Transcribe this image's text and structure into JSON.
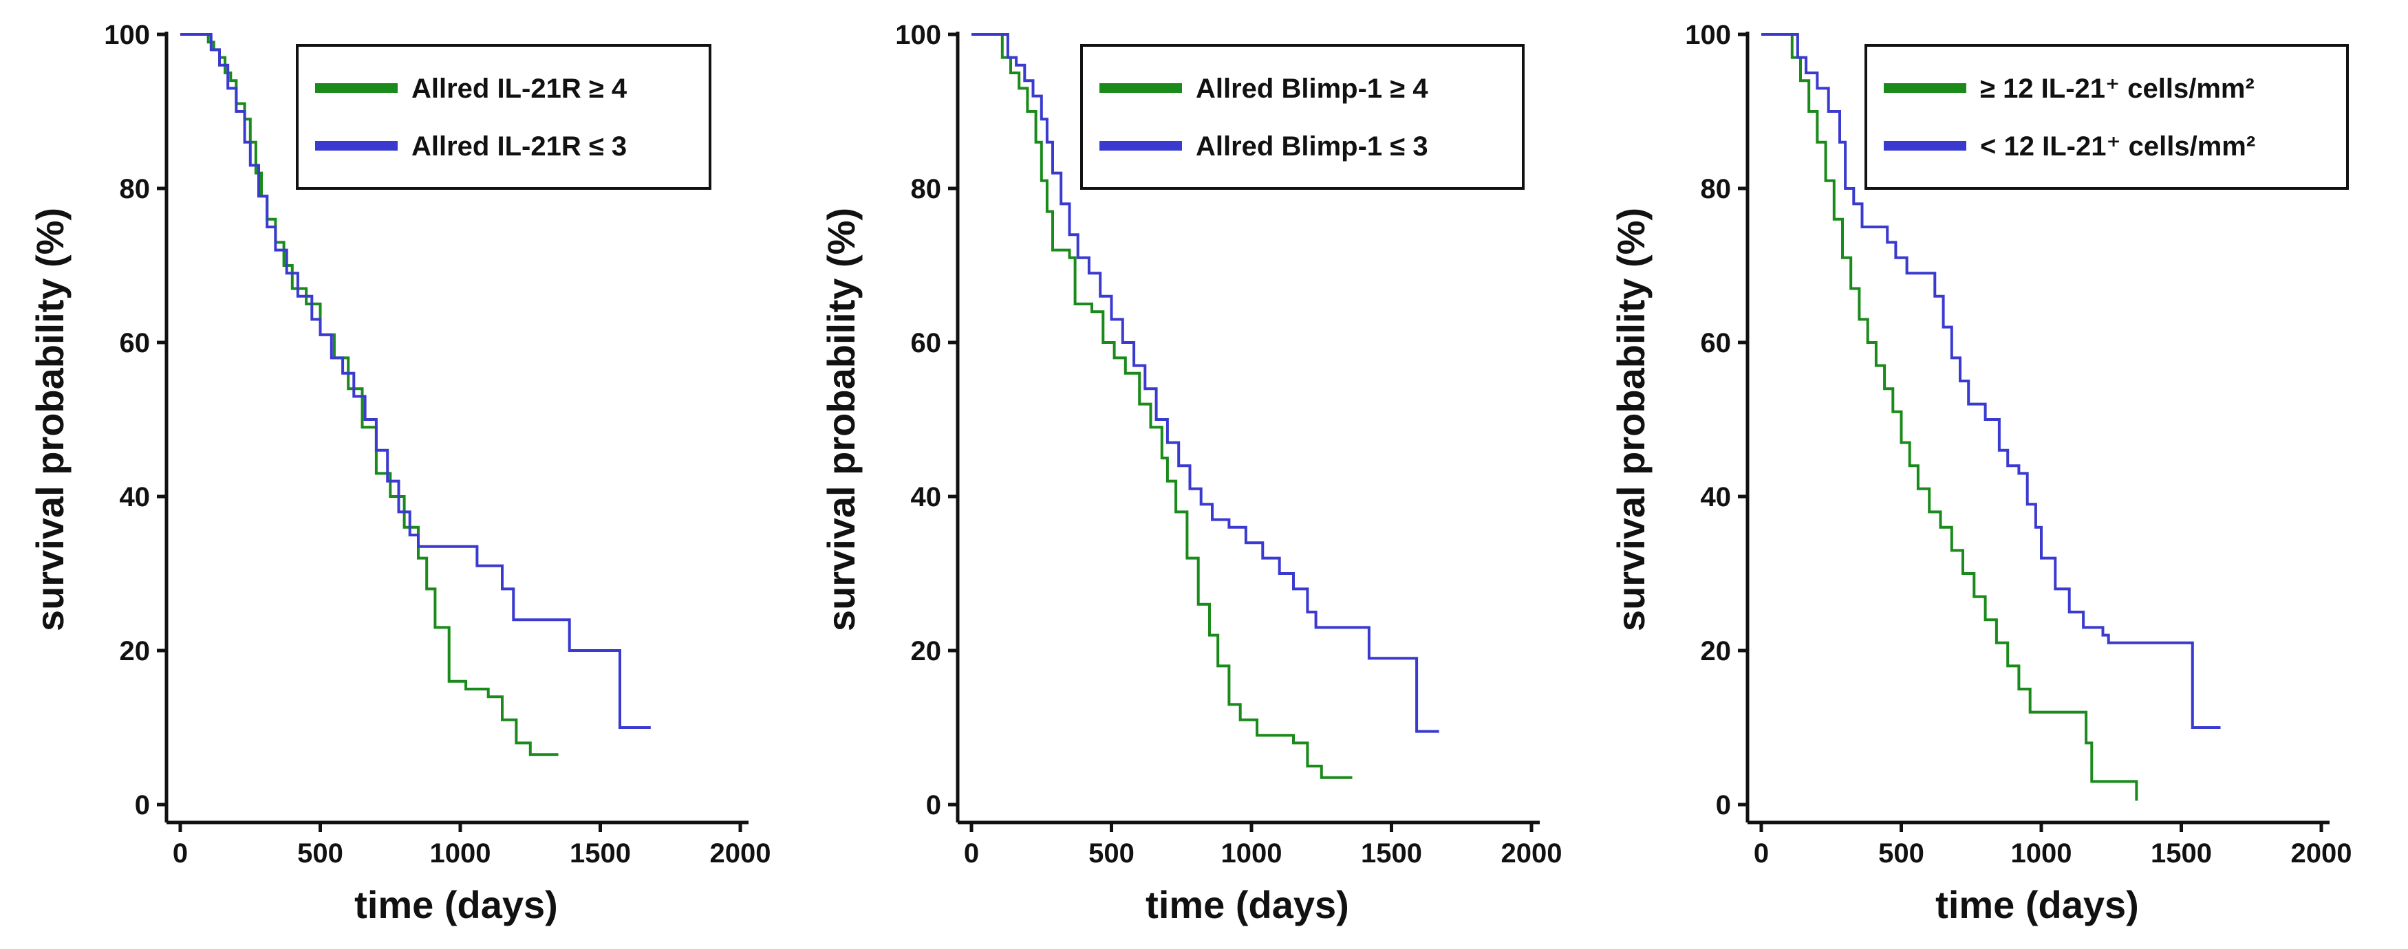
{
  "chart_data": [
    {
      "type": "line",
      "subtype": "kaplan-meier",
      "title": "",
      "xlabel": "time (days)",
      "ylabel": "survival probability (%)",
      "xlim": [
        0,
        2000
      ],
      "ylim": [
        0,
        100
      ],
      "xticks": [
        "0",
        "500",
        "1000",
        "1500",
        "2000"
      ],
      "yticks": [
        "0",
        "20",
        "40",
        "60",
        "80",
        "100"
      ],
      "legend_position": "top-right",
      "series": [
        {
          "name": "Allred IL-21R ≥ 4",
          "color": "#1a8a1a",
          "points": [
            [
              0,
              100
            ],
            [
              80,
              100
            ],
            [
              100,
              99
            ],
            [
              120,
              98
            ],
            [
              140,
              97
            ],
            [
              160,
              95
            ],
            [
              180,
              94
            ],
            [
              200,
              91
            ],
            [
              230,
              89
            ],
            [
              250,
              86
            ],
            [
              270,
              82
            ],
            [
              290,
              79
            ],
            [
              310,
              76
            ],
            [
              340,
              73
            ],
            [
              370,
              70
            ],
            [
              400,
              67
            ],
            [
              450,
              65
            ],
            [
              500,
              61
            ],
            [
              550,
              58
            ],
            [
              600,
              54
            ],
            [
              650,
              49
            ],
            [
              700,
              43
            ],
            [
              750,
              40
            ],
            [
              800,
              36
            ],
            [
              850,
              32
            ],
            [
              880,
              28
            ],
            [
              910,
              23
            ],
            [
              960,
              16
            ],
            [
              1020,
              15
            ],
            [
              1100,
              14
            ],
            [
              1150,
              11
            ],
            [
              1200,
              8
            ],
            [
              1250,
              6.5
            ],
            [
              1350,
              6.5
            ]
          ]
        },
        {
          "name": "Allred IL-21R ≤ 3",
          "color": "#3a3ad0",
          "points": [
            [
              0,
              100
            ],
            [
              90,
              100
            ],
            [
              110,
              98
            ],
            [
              140,
              96
            ],
            [
              170,
              93
            ],
            [
              200,
              90
            ],
            [
              230,
              86
            ],
            [
              250,
              83
            ],
            [
              280,
              79
            ],
            [
              310,
              75
            ],
            [
              340,
              72
            ],
            [
              380,
              69
            ],
            [
              420,
              66
            ],
            [
              470,
              63
            ],
            [
              500,
              61
            ],
            [
              540,
              58
            ],
            [
              580,
              56
            ],
            [
              620,
              53
            ],
            [
              660,
              50
            ],
            [
              700,
              46
            ],
            [
              740,
              42
            ],
            [
              780,
              38
            ],
            [
              820,
              35
            ],
            [
              850,
              33.5
            ],
            [
              1040,
              33.5
            ],
            [
              1060,
              31
            ],
            [
              1150,
              28
            ],
            [
              1190,
              24
            ],
            [
              1380,
              24
            ],
            [
              1390,
              20
            ],
            [
              1560,
              20
            ],
            [
              1570,
              10
            ],
            [
              1680,
              10
            ]
          ]
        }
      ]
    },
    {
      "type": "line",
      "subtype": "kaplan-meier",
      "title": "",
      "xlabel": "time (days)",
      "ylabel": "survival probability (%)",
      "xlim": [
        0,
        2000
      ],
      "ylim": [
        0,
        100
      ],
      "xticks": [
        "0",
        "500",
        "1000",
        "1500",
        "2000"
      ],
      "yticks": [
        "0",
        "20",
        "40",
        "60",
        "80",
        "100"
      ],
      "legend_position": "top-right",
      "series": [
        {
          "name": "Allred Blimp-1 ≥ 4",
          "color": "#1a8a1a",
          "points": [
            [
              0,
              100
            ],
            [
              80,
              100
            ],
            [
              110,
              97
            ],
            [
              140,
              95
            ],
            [
              170,
              93
            ],
            [
              200,
              90
            ],
            [
              230,
              86
            ],
            [
              250,
              81
            ],
            [
              270,
              77
            ],
            [
              290,
              72
            ],
            [
              350,
              71
            ],
            [
              370,
              65
            ],
            [
              430,
              64
            ],
            [
              470,
              60
            ],
            [
              510,
              58
            ],
            [
              550,
              56
            ],
            [
              600,
              52
            ],
            [
              640,
              49
            ],
            [
              680,
              45
            ],
            [
              700,
              42
            ],
            [
              730,
              38
            ],
            [
              770,
              32
            ],
            [
              810,
              26
            ],
            [
              850,
              22
            ],
            [
              880,
              18
            ],
            [
              920,
              13
            ],
            [
              960,
              11
            ],
            [
              1020,
              9
            ],
            [
              1150,
              8
            ],
            [
              1200,
              5
            ],
            [
              1250,
              3.5
            ],
            [
              1360,
              3.5
            ]
          ]
        },
        {
          "name": "Allred Blimp-1 ≤ 3",
          "color": "#3a3ad0",
          "points": [
            [
              0,
              100
            ],
            [
              100,
              100
            ],
            [
              130,
              97
            ],
            [
              160,
              96
            ],
            [
              190,
              94
            ],
            [
              220,
              92
            ],
            [
              250,
              89
            ],
            [
              270,
              86
            ],
            [
              290,
              82
            ],
            [
              320,
              78
            ],
            [
              350,
              74
            ],
            [
              380,
              71
            ],
            [
              420,
              69
            ],
            [
              460,
              66
            ],
            [
              500,
              63
            ],
            [
              540,
              60
            ],
            [
              580,
              57
            ],
            [
              620,
              54
            ],
            [
              660,
              50
            ],
            [
              700,
              47
            ],
            [
              740,
              44
            ],
            [
              780,
              41
            ],
            [
              820,
              39
            ],
            [
              860,
              37
            ],
            [
              920,
              36
            ],
            [
              980,
              34
            ],
            [
              1040,
              32
            ],
            [
              1100,
              30
            ],
            [
              1150,
              28
            ],
            [
              1200,
              25
            ],
            [
              1230,
              23
            ],
            [
              1400,
              23
            ],
            [
              1420,
              19
            ],
            [
              1570,
              19
            ],
            [
              1590,
              9.5
            ],
            [
              1670,
              9.5
            ]
          ]
        }
      ]
    },
    {
      "type": "line",
      "subtype": "kaplan-meier",
      "title": "",
      "xlabel": "time (days)",
      "ylabel": "survival probability (%)",
      "xlim": [
        0,
        2000
      ],
      "ylim": [
        0,
        100
      ],
      "xticks": [
        "0",
        "500",
        "1000",
        "1500",
        "2000"
      ],
      "yticks": [
        "0",
        "20",
        "40",
        "60",
        "80",
        "100"
      ],
      "legend_position": "top-right",
      "series": [
        {
          "name": "≥ 12 IL-21⁺ cells/mm²",
          "color": "#1a8a1a",
          "points": [
            [
              0,
              100
            ],
            [
              80,
              100
            ],
            [
              110,
              97
            ],
            [
              140,
              94
            ],
            [
              170,
              90
            ],
            [
              200,
              86
            ],
            [
              230,
              81
            ],
            [
              260,
              76
            ],
            [
              290,
              71
            ],
            [
              320,
              67
            ],
            [
              350,
              63
            ],
            [
              380,
              60
            ],
            [
              410,
              57
            ],
            [
              440,
              54
            ],
            [
              470,
              51
            ],
            [
              500,
              47
            ],
            [
              530,
              44
            ],
            [
              560,
              41
            ],
            [
              600,
              38
            ],
            [
              640,
              36
            ],
            [
              680,
              33
            ],
            [
              720,
              30
            ],
            [
              760,
              27
            ],
            [
              800,
              24
            ],
            [
              840,
              21
            ],
            [
              880,
              18
            ],
            [
              920,
              15
            ],
            [
              960,
              12
            ],
            [
              1120,
              12
            ],
            [
              1160,
              8
            ],
            [
              1180,
              3
            ],
            [
              1300,
              3
            ],
            [
              1340,
              0.5
            ]
          ]
        },
        {
          "name": "< 12 IL-21⁺ cells/mm²",
          "color": "#3a3ad0",
          "points": [
            [
              0,
              100
            ],
            [
              100,
              100
            ],
            [
              130,
              97
            ],
            [
              160,
              95
            ],
            [
              200,
              93
            ],
            [
              240,
              90
            ],
            [
              280,
              86
            ],
            [
              300,
              80
            ],
            [
              330,
              78
            ],
            [
              360,
              75
            ],
            [
              420,
              75
            ],
            [
              450,
              73
            ],
            [
              480,
              71
            ],
            [
              520,
              69
            ],
            [
              600,
              69
            ],
            [
              620,
              66
            ],
            [
              650,
              62
            ],
            [
              680,
              58
            ],
            [
              710,
              55
            ],
            [
              740,
              52
            ],
            [
              800,
              50
            ],
            [
              850,
              46
            ],
            [
              880,
              44
            ],
            [
              920,
              43
            ],
            [
              950,
              39
            ],
            [
              980,
              36
            ],
            [
              1000,
              32
            ],
            [
              1050,
              28
            ],
            [
              1100,
              25
            ],
            [
              1150,
              23
            ],
            [
              1220,
              22
            ],
            [
              1240,
              21
            ],
            [
              1520,
              21
            ],
            [
              1540,
              10
            ],
            [
              1640,
              10
            ]
          ]
        }
      ]
    }
  ]
}
